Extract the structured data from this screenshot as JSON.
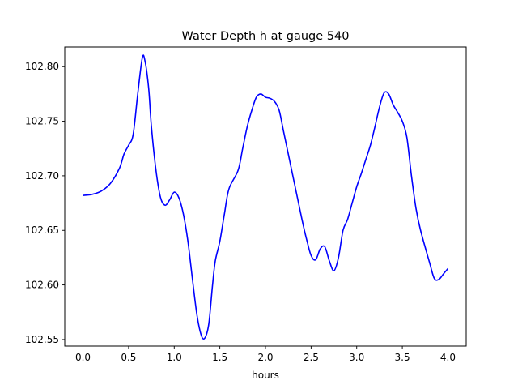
{
  "chart_data": {
    "type": "line",
    "title": "Water Depth h at gauge 540",
    "xlabel": "hours",
    "ylabel": "",
    "xlim": [
      -0.2,
      4.2
    ],
    "ylim": [
      102.544,
      102.818
    ],
    "x_ticks": [
      0.0,
      0.5,
      1.0,
      1.5,
      2.0,
      2.5,
      3.0,
      3.5,
      4.0
    ],
    "x_tick_labels": [
      "0.0",
      "0.5",
      "1.0",
      "1.5",
      "2.0",
      "2.5",
      "3.0",
      "3.5",
      "4.0"
    ],
    "y_ticks": [
      102.55,
      102.6,
      102.65,
      102.7,
      102.75,
      102.8
    ],
    "y_tick_labels": [
      "102.55",
      "102.60",
      "102.65",
      "102.70",
      "102.75",
      "102.80"
    ],
    "grid": false,
    "series": [
      {
        "color": "#0000ff",
        "x": [
          0.0,
          0.1,
          0.2,
          0.3,
          0.4,
          0.45,
          0.5,
          0.55,
          0.6,
          0.65,
          0.68,
          0.72,
          0.75,
          0.8,
          0.85,
          0.9,
          0.95,
          1.0,
          1.05,
          1.1,
          1.15,
          1.2,
          1.25,
          1.3,
          1.34,
          1.38,
          1.42,
          1.45,
          1.5,
          1.55,
          1.6,
          1.7,
          1.75,
          1.8,
          1.85,
          1.9,
          1.95,
          2.0,
          2.05,
          2.1,
          2.15,
          2.2,
          2.3,
          2.4,
          2.45,
          2.5,
          2.55,
          2.6,
          2.65,
          2.7,
          2.75,
          2.8,
          2.85,
          2.9,
          2.95,
          3.0,
          3.05,
          3.1,
          3.15,
          3.2,
          3.25,
          3.3,
          3.35,
          3.4,
          3.45,
          3.5,
          3.55,
          3.6,
          3.65,
          3.7,
          3.8,
          3.85,
          3.9,
          3.95,
          4.0
        ],
        "values": [
          102.682,
          102.683,
          102.686,
          102.693,
          102.707,
          102.72,
          102.728,
          102.738,
          102.775,
          102.808,
          102.805,
          102.78,
          102.745,
          102.705,
          102.68,
          102.673,
          102.678,
          102.685,
          102.68,
          102.665,
          102.64,
          102.605,
          102.572,
          102.553,
          102.552,
          102.565,
          102.6,
          102.622,
          102.64,
          102.665,
          102.688,
          102.705,
          102.725,
          102.745,
          102.76,
          102.772,
          102.775,
          102.772,
          102.771,
          102.768,
          102.76,
          102.74,
          102.7,
          102.66,
          102.642,
          102.627,
          102.623,
          102.633,
          102.635,
          102.622,
          102.613,
          102.625,
          102.65,
          102.66,
          102.675,
          102.69,
          102.702,
          102.715,
          102.728,
          102.745,
          102.763,
          102.776,
          102.775,
          102.765,
          102.758,
          102.75,
          102.735,
          102.7,
          102.67,
          102.65,
          102.62,
          102.606,
          102.605,
          102.61,
          102.615
        ]
      }
    ]
  }
}
